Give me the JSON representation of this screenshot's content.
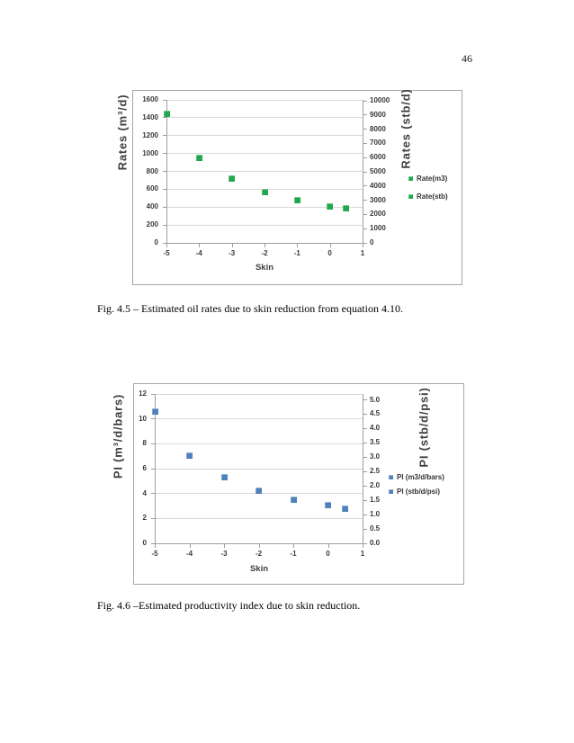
{
  "page": {
    "number": "46"
  },
  "figures": [
    {
      "caption": "Fig. 4.5 – Estimated oil rates due to skin reduction from equation 4.10."
    },
    {
      "caption": "Fig. 4.6 –Estimated productivity index due to skin reduction."
    }
  ],
  "chart_data": [
    {
      "type": "scatter",
      "title": "",
      "xlabel": "Skin",
      "x_range": [
        -5,
        1
      ],
      "x_ticks": [
        -5,
        -4,
        -3,
        -2,
        -1,
        0,
        1
      ],
      "x_tick_labels": [
        "-5",
        "-4",
        "-3",
        "-2",
        "-1",
        "0",
        "1"
      ],
      "x": [
        -5,
        -4,
        -3,
        -2,
        -1,
        0,
        0.5
      ],
      "series": [
        {
          "name": "Rate(m3)",
          "axis": "left",
          "values": [
            1440,
            955,
            720,
            565,
            475,
            410,
            385
          ]
        },
        {
          "name": "Rate(stb)",
          "axis": "right",
          "values": [
            9060,
            6010,
            4530,
            3555,
            2990,
            2580,
            2420
          ]
        }
      ],
      "marker_color": "#21A84D",
      "grid": true,
      "legend_position": "right",
      "legend": [
        "Rate(m3)",
        "Rate(stb)"
      ],
      "left_axis": {
        "title": "Rates (m³/d)",
        "min": 0,
        "max": 1600,
        "tick_values": [
          0,
          200,
          400,
          600,
          800,
          1000,
          1200,
          1400,
          1600
        ],
        "tick_labels": [
          "0",
          "200",
          "400",
          "600",
          "800",
          "1000",
          "1200",
          "1400",
          "1600"
        ]
      },
      "right_axis": {
        "title": "Rates (stb/d)",
        "min": 0,
        "max": 10000,
        "units_per_left_unit": 6.29,
        "tick_values": [
          0,
          1000,
          2000,
          3000,
          4000,
          5000,
          6000,
          7000,
          8000,
          9000,
          10000
        ],
        "tick_labels": [
          "0",
          "1000",
          "2000",
          "3000",
          "4000",
          "5000",
          "6000",
          "7000",
          "8000",
          "9000",
          "10000"
        ]
      }
    },
    {
      "type": "scatter",
      "title": "",
      "xlabel": "Skin",
      "x_range": [
        -5,
        1
      ],
      "x_ticks": [
        -5,
        -4,
        -3,
        -2,
        -1,
        0,
        1
      ],
      "x_tick_labels": [
        "-5",
        "-4",
        "-3",
        "-2",
        "-1",
        "0",
        "1"
      ],
      "x": [
        -5,
        -4,
        -3,
        -2,
        -1,
        0,
        0.5
      ],
      "series": [
        {
          "name": "PI (m3/d/bars)",
          "axis": "left",
          "values": [
            10.6,
            7.05,
            5.3,
            4.2,
            3.5,
            3.05,
            2.8
          ]
        },
        {
          "name": "PI (stb/d/psi)",
          "axis": "right",
          "values": [
            4.6,
            3.06,
            2.3,
            1.82,
            1.52,
            1.32,
            1.21
          ]
        }
      ],
      "marker_color": "#4F81BD",
      "grid": true,
      "legend_position": "right",
      "legend": [
        "PI (m3/d/bars)",
        "PI (stb/d/psi)"
      ],
      "left_axis": {
        "title": "PI (m³/d/bars)",
        "min": 0,
        "max": 12,
        "tick_values": [
          0,
          2,
          4,
          6,
          8,
          10,
          12
        ],
        "tick_labels": [
          "0",
          "2",
          "4",
          "6",
          "8",
          "10",
          "12"
        ]
      },
      "right_axis": {
        "title": "PI (stb/d/psi)",
        "min": 0,
        "max": 5,
        "units_per_left_unit": 0.4337,
        "tick_values": [
          0,
          0.5,
          1,
          1.5,
          2,
          2.5,
          3,
          3.5,
          4,
          4.5,
          5
        ],
        "tick_labels": [
          "0.0",
          "0.5",
          "1.0",
          "1.5",
          "2.0",
          "2.5",
          "3.0",
          "3.5",
          "4.0",
          "4.5",
          "5.0"
        ]
      }
    }
  ]
}
